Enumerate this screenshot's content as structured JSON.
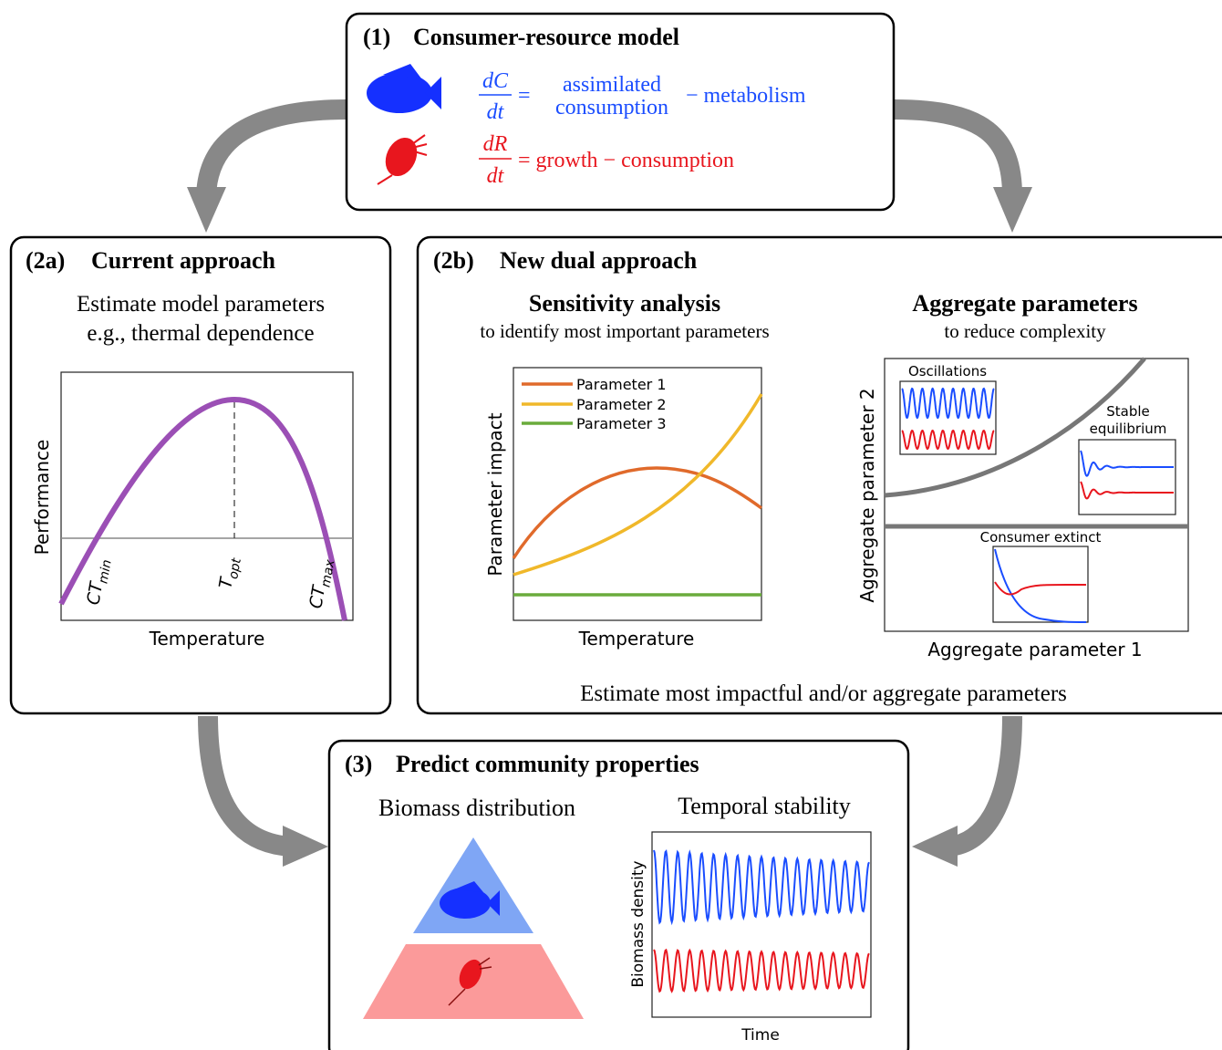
{
  "box1": {
    "number": "(1)",
    "title": "Consumer-resource model",
    "consumer_eq": {
      "num": "dC",
      "den": "dt",
      "eq": "=",
      "term1_line1": "assimilated",
      "term1_line2": "consumption",
      "term2": "− metabolism"
    },
    "resource_eq": {
      "num": "dR",
      "den": "dt",
      "rhs": "= growth − consumption"
    }
  },
  "box2a": {
    "number": "(2a)",
    "title": "Current approach",
    "line1": "Estimate model parameters",
    "line2": "e.g., thermal dependence",
    "y_label": "Performance",
    "x_label": "Temperature",
    "markers": [
      {
        "main": "CT",
        "sub": "min"
      },
      {
        "main": "T",
        "sub": "opt"
      },
      {
        "main": "CT",
        "sub": "max"
      }
    ]
  },
  "box2b": {
    "number": "(2b)",
    "title": "New dual approach",
    "sensitivity": {
      "title": "Sensitivity analysis",
      "subtitle": "to identify most important parameters",
      "legend": [
        "Parameter 1",
        "Parameter 2",
        "Parameter 3"
      ],
      "y_label": "Parameter impact",
      "x_label": "Temperature"
    },
    "aggregate": {
      "title": "Aggregate parameters",
      "subtitle": "to reduce complexity",
      "insets": [
        "Oscillations",
        "Stable",
        "equilibrium",
        "Consumer extinct"
      ],
      "y_label": "Aggregate parameter 2",
      "x_label": "Aggregate parameter 1"
    },
    "footer": "Estimate most impactful and/or aggregate parameters"
  },
  "box3": {
    "number": "(3)",
    "title": "Predict community properties",
    "left_title": "Biomass distribution",
    "right_title": "Temporal stability",
    "y_label": "Biomass density",
    "x_label": "Time"
  }
}
